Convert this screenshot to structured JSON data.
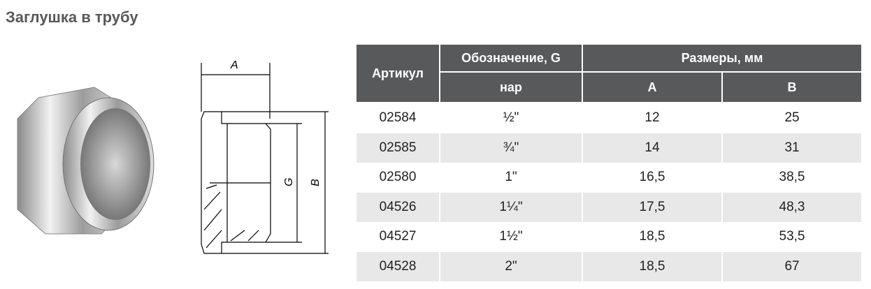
{
  "title": "Заглушка в трубу",
  "drawing": {
    "label_a": "A",
    "label_g": "G",
    "label_b": "B"
  },
  "table": {
    "headers": {
      "article": "Артикул",
      "designation": "Обозначение, G",
      "sizes": "Размеры, мм",
      "thread": "нар",
      "a": "A",
      "b": "B"
    },
    "rows": [
      {
        "article": "02584",
        "g": "½\"",
        "a": "12",
        "b": "25"
      },
      {
        "article": "02585",
        "g": "¾\"",
        "a": "14",
        "b": "31"
      },
      {
        "article": "02580",
        "g": "1\"",
        "a": "16,5",
        "b": "38,5"
      },
      {
        "article": "04526",
        "g": "1¼\"",
        "a": "17,5",
        "b": "48,3"
      },
      {
        "article": "04527",
        "g": "1½\"",
        "a": "18,5",
        "b": "53,5"
      },
      {
        "article": "04528",
        "g": "2\"",
        "a": "18,5",
        "b": "67"
      }
    ]
  },
  "colors": {
    "header_bg": "#58595b",
    "alt_row": "#e8e8e9"
  }
}
